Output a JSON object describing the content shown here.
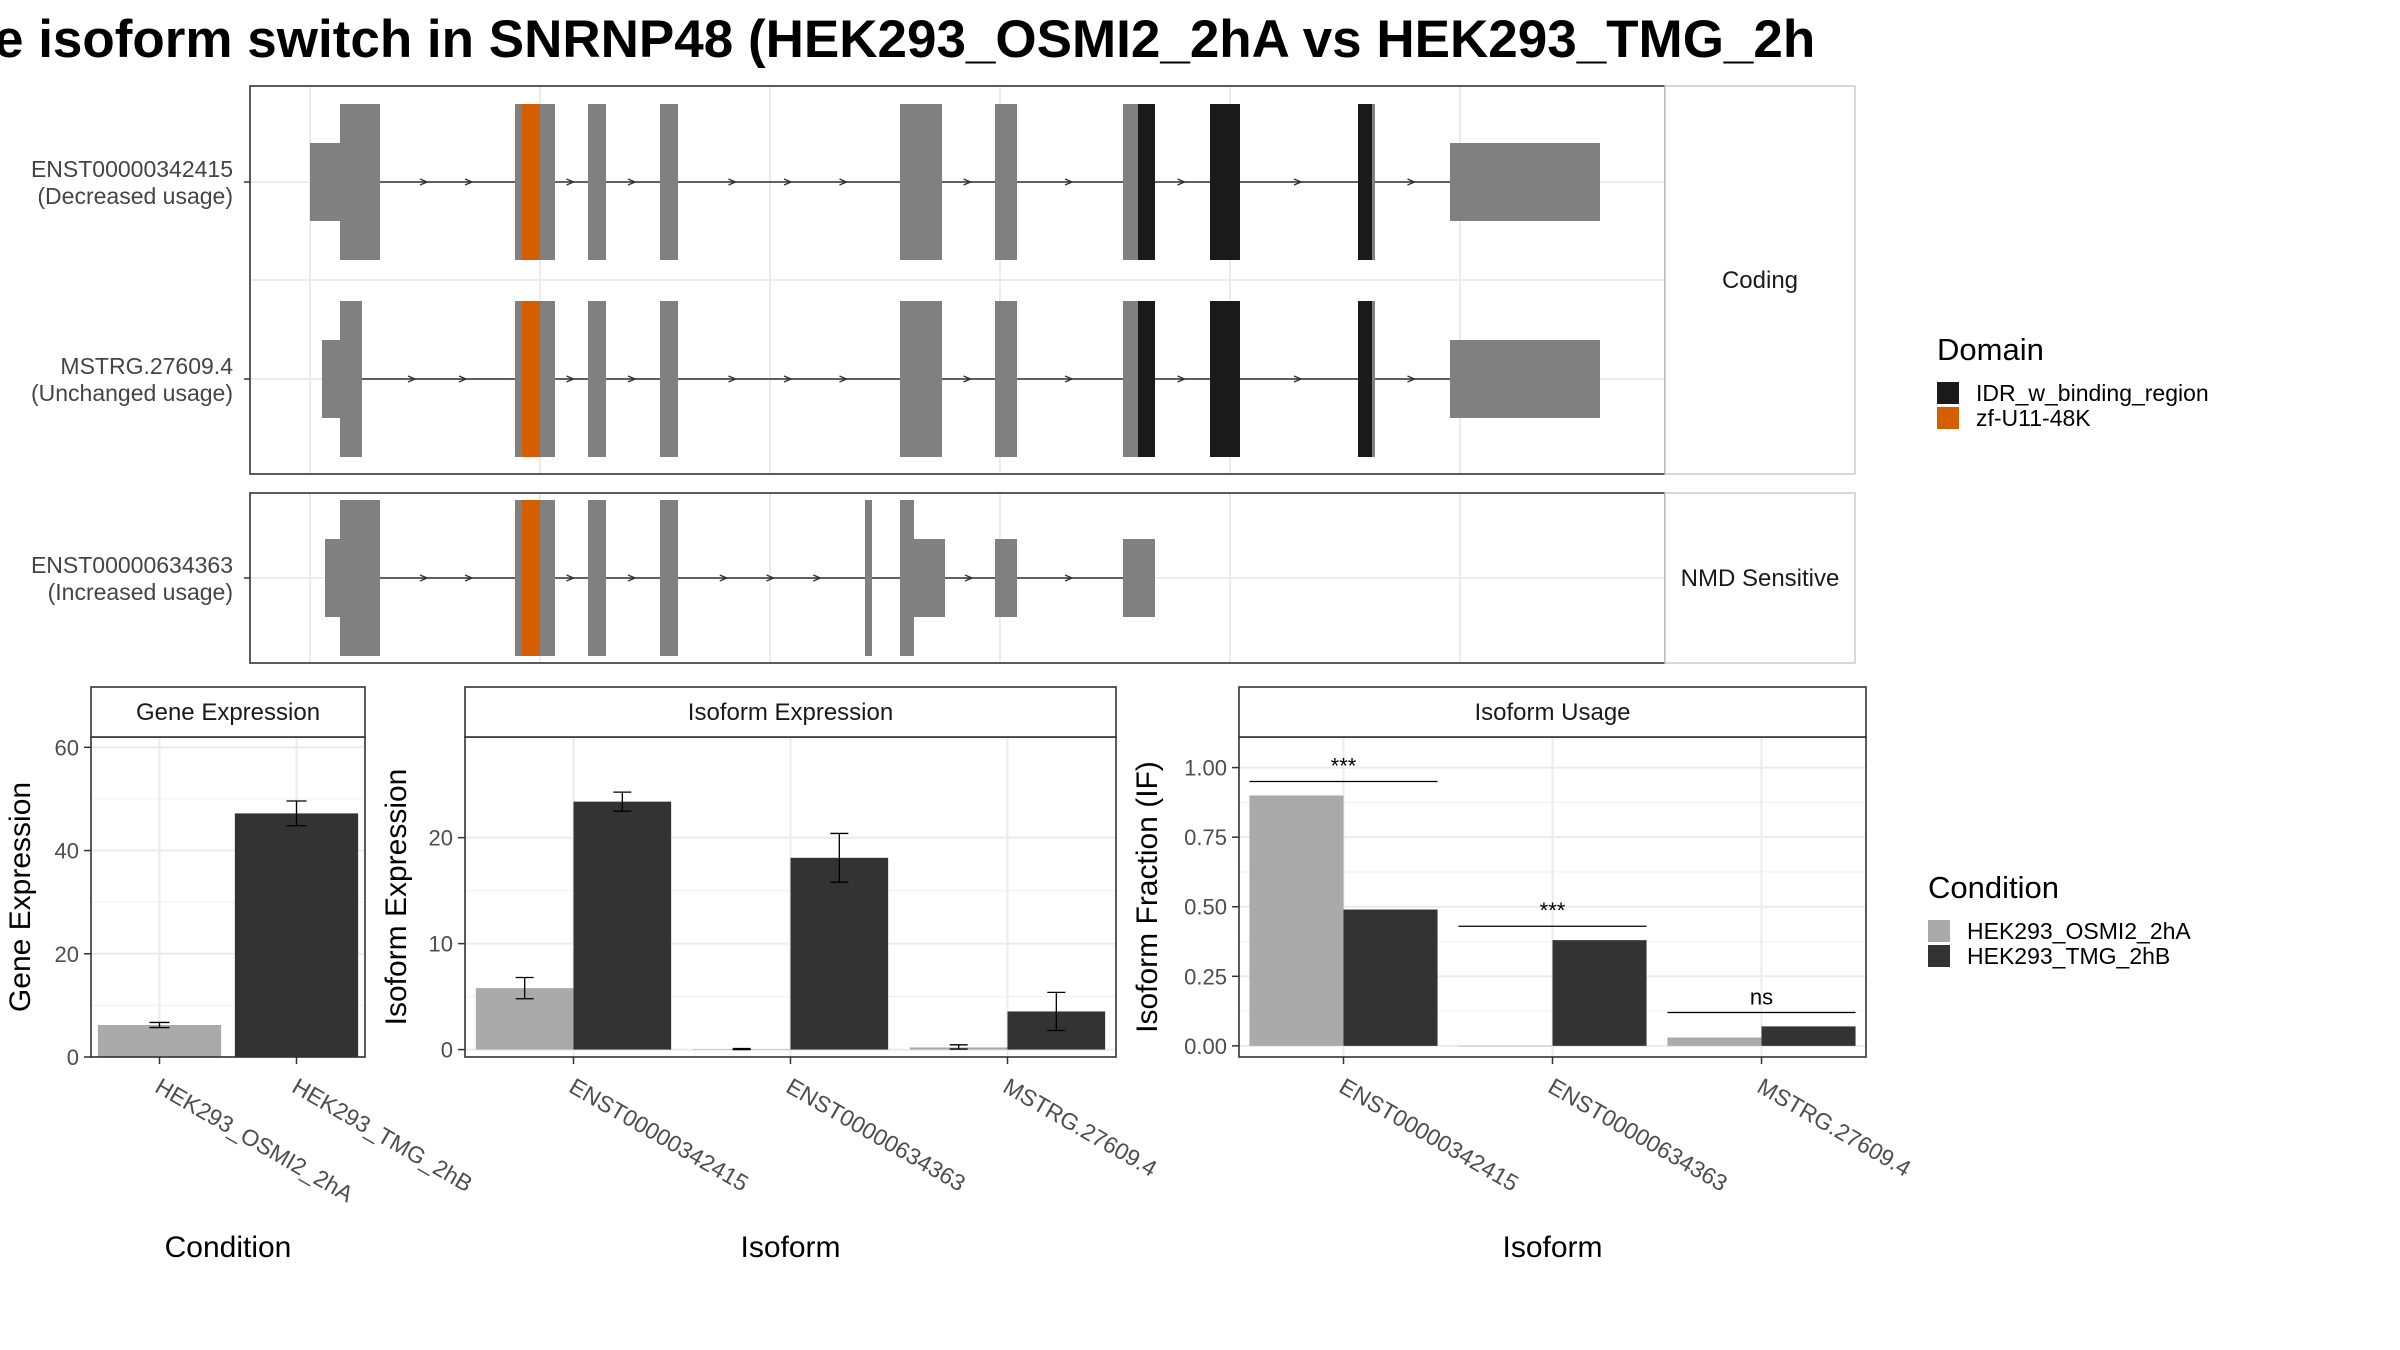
{
  "title": "e isoform switch in SNRNP48 (HEK293_OSMI2_2hA vs HEK293_TMG_2h",
  "structure": {
    "facets": [
      {
        "label": "Coding",
        "transcripts": [
          {
            "id": "ENST00000342415",
            "usage": "(Decreased usage)",
            "utr": [
              [
                0,
                30
              ],
              [
                1140,
                1290
              ]
            ],
            "cds": [
              [
                30,
                70
              ],
              [
                205,
                245
              ],
              [
                278,
                296
              ],
              [
                350,
                368
              ],
              [
                590,
                632
              ],
              [
                685,
                707
              ],
              [
                813,
                845
              ],
              [
                900,
                930
              ],
              [
                1048,
                1065
              ]
            ],
            "domains": [
              {
                "domain": "zf-U11-48K",
                "range": [
                  212,
                  230
                ]
              },
              {
                "domain": "IDR_w_binding_region",
                "range": [
                  828,
                  845
                ]
              },
              {
                "domain": "IDR_w_binding_region",
                "range": [
                  900,
                  930
                ]
              },
              {
                "domain": "IDR_w_binding_region",
                "range": [
                  1048,
                  1062
                ]
              }
            ]
          },
          {
            "id": "MSTRG.27609.4",
            "usage": "(Unchanged usage)",
            "utr": [
              [
                12,
                30
              ],
              [
                1140,
                1290
              ]
            ],
            "cds": [
              [
                30,
                52
              ],
              [
                205,
                245
              ],
              [
                278,
                296
              ],
              [
                350,
                368
              ],
              [
                590,
                632
              ],
              [
                685,
                707
              ],
              [
                813,
                845
              ],
              [
                900,
                930
              ],
              [
                1048,
                1065
              ]
            ],
            "domains": [
              {
                "domain": "zf-U11-48K",
                "range": [
                  212,
                  230
                ]
              },
              {
                "domain": "IDR_w_binding_region",
                "range": [
                  828,
                  845
                ]
              },
              {
                "domain": "IDR_w_binding_region",
                "range": [
                  900,
                  930
                ]
              },
              {
                "domain": "IDR_w_binding_region",
                "range": [
                  1048,
                  1062
                ]
              }
            ]
          }
        ]
      },
      {
        "label": "NMD Sensitive",
        "transcripts": [
          {
            "id": "ENST00000634363",
            "usage": "(Increased usage)",
            "utr": [
              [
                15,
                30
              ],
              [
                604,
                635
              ],
              [
                685,
                707
              ],
              [
                813,
                845
              ]
            ],
            "cds": [
              [
                30,
                70
              ],
              [
                205,
                245
              ],
              [
                278,
                296
              ],
              [
                350,
                368
              ],
              [
                555,
                562
              ],
              [
                590,
                604
              ]
            ],
            "domains": [
              {
                "domain": "zf-U11-48K",
                "range": [
                  212,
                  230
                ]
              }
            ]
          }
        ]
      }
    ],
    "colors": {
      "exon": "#808080",
      "IDR_w_binding_region": "#1a1a1a",
      "zf-U11-48K": "#d55e00"
    }
  },
  "domain_legend": {
    "title": "Domain",
    "items": [
      {
        "label": "IDR_w_binding_region",
        "color": "#1a1a1a"
      },
      {
        "label": "zf-U11-48K",
        "color": "#d55e00"
      }
    ]
  },
  "condition_legend": {
    "title": "Condition",
    "items": [
      {
        "label": "HEK293_OSMI2_2hA",
        "color": "#aaaaaa"
      },
      {
        "label": "HEK293_TMG_2hB",
        "color": "#333333"
      }
    ]
  },
  "chart_data": [
    {
      "type": "bar",
      "title": "Gene Expression",
      "xlabel": "Condition",
      "ylabel": "Gene Expression",
      "ylim": [
        0,
        62
      ],
      "yticks": [
        0,
        20,
        40,
        60
      ],
      "categories": [
        "HEK293_OSMI2_2hA",
        "HEK293_TMG_2hB"
      ],
      "values": [
        6.2,
        47.2
      ],
      "errors": [
        [
          5.7,
          6.7
        ],
        [
          44.8,
          49.6
        ]
      ],
      "colors": [
        "#aaaaaa",
        "#333333"
      ]
    },
    {
      "type": "bar",
      "title": "Isoform Expression",
      "xlabel": "Isoform",
      "ylabel": "Isoform Expression",
      "ylim": [
        -0.7,
        29.5
      ],
      "yticks": [
        0,
        10,
        20
      ],
      "categories": [
        "ENST00000342415",
        "ENST00000634363",
        "MSTRG.27609.4"
      ],
      "series": [
        {
          "name": "HEK293_OSMI2_2hA",
          "values": [
            5.8,
            0.05,
            0.2
          ],
          "errors": [
            [
              4.8,
              6.8
            ],
            [
              0.0,
              0.1
            ],
            [
              0.05,
              0.45
            ]
          ]
        },
        {
          "name": "HEK293_TMG_2hB",
          "values": [
            23.4,
            18.1,
            3.6
          ],
          "errors": [
            [
              22.5,
              24.3
            ],
            [
              15.8,
              20.4
            ],
            [
              1.8,
              5.4
            ]
          ]
        }
      ]
    },
    {
      "type": "bar",
      "title": "Isoform Usage",
      "xlabel": "Isoform",
      "ylabel": "Isoform Fraction (IF)",
      "ylim": [
        -0.04,
        1.11
      ],
      "yticks": [
        0,
        0.25,
        0.5,
        0.75,
        1
      ],
      "ytick_labels": [
        "0.00",
        "0.25",
        "0.50",
        "0.75",
        "1.00"
      ],
      "categories": [
        "ENST00000342415",
        "ENST00000634363",
        "MSTRG.27609.4"
      ],
      "series": [
        {
          "name": "HEK293_OSMI2_2hA",
          "values": [
            0.9,
            0.0,
            0.03
          ]
        },
        {
          "name": "HEK293_TMG_2hB",
          "values": [
            0.49,
            0.38,
            0.07
          ]
        }
      ],
      "significance": [
        {
          "label": "***",
          "y": 0.95
        },
        {
          "label": "***",
          "y": 0.43
        },
        {
          "label": "ns",
          "y": 0.12
        }
      ]
    }
  ]
}
